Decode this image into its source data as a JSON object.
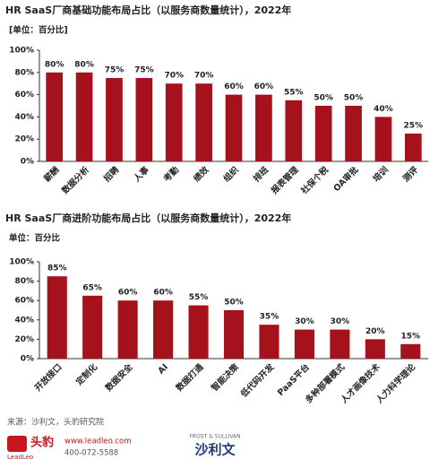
{
  "chart_data": [
    {
      "type": "bar",
      "title": "HR SaaS厂商基础功能布局占比（以服务商数量统计），2022年",
      "unit": "[单位：百分比]",
      "categories": [
        "薪酬",
        "数据分析",
        "招聘",
        "人事",
        "考勤",
        "绩效",
        "组织",
        "排班",
        "报表管理",
        "社保个税",
        "OA审批",
        "培训",
        "测评"
      ],
      "values": [
        80,
        80,
        75,
        75,
        70,
        70,
        60,
        60,
        55,
        50,
        50,
        40,
        25
      ],
      "value_labels": [
        "80%",
        "80%",
        "75%",
        "75%",
        "70%",
        "70%",
        "60%",
        "60%",
        "55%",
        "50%",
        "50%",
        "40%",
        "25%"
      ],
      "color": "#a5121c",
      "ylim": [
        0,
        100
      ],
      "yticks": [
        {
          "value": 0,
          "label": "0%"
        },
        {
          "value": 20,
          "label": "20%"
        },
        {
          "value": 40,
          "label": "40%"
        },
        {
          "value": 60,
          "label": "60%"
        },
        {
          "value": 80,
          "label": "80%"
        },
        {
          "value": 100,
          "label": "100%"
        }
      ]
    },
    {
      "type": "bar",
      "title": "HR SaaS厂商进阶功能布局占比（以服务商数量统计），2022年",
      "unit": "单位：百分比",
      "categories": [
        "开放接口",
        "定制化",
        "数据安全",
        "AI",
        "数据打通",
        "智能决策",
        "低代码开发",
        "PaaS平台",
        "多种部署模式",
        "人才画像技术",
        "人力科学理论"
      ],
      "values": [
        85,
        65,
        60,
        60,
        55,
        50,
        35,
        30,
        30,
        20,
        15
      ],
      "value_labels": [
        "85%",
        "65%",
        "60%",
        "60%",
        "55%",
        "50%",
        "35%",
        "30%",
        "30%",
        "20%",
        "15%"
      ],
      "color": "#a5121c",
      "ylim": [
        0,
        100
      ],
      "yticks": [
        {
          "value": 0,
          "label": "0%"
        },
        {
          "value": 20,
          "label": "20%"
        },
        {
          "value": 40,
          "label": "40%"
        },
        {
          "value": 60,
          "label": "60%"
        },
        {
          "value": 80,
          "label": "80%"
        },
        {
          "value": 100,
          "label": "100%"
        }
      ]
    }
  ],
  "footer": {
    "source": "来源：沙利文，头豹研究院",
    "brand": "头豹",
    "brand_en": "LeadLeo",
    "website": "www.leadleo.com",
    "phone": "400-072-5588",
    "partner_en": "FROST & SULLIVAN",
    "partner": "沙利文"
  }
}
